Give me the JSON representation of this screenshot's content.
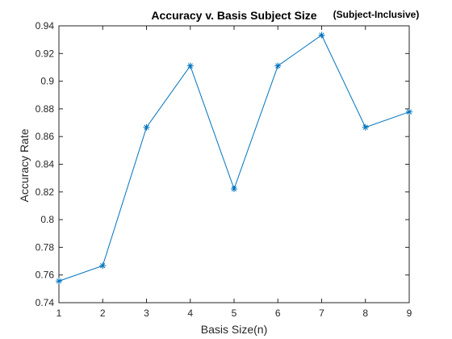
{
  "chart_data": {
    "type": "line",
    "title": "Accuracy v. Basis Subject Size",
    "subtitle": "(Subject-Inclusive)",
    "xlabel": "Basis Size(n)",
    "ylabel": "Accuracy Rate",
    "xlim": [
      1,
      9
    ],
    "ylim": [
      0.74,
      0.94
    ],
    "x_ticks": [
      1,
      2,
      3,
      4,
      5,
      6,
      7,
      8,
      9
    ],
    "y_ticks": [
      0.74,
      0.76,
      0.78,
      0.8,
      0.82,
      0.84,
      0.86,
      0.88,
      0.9,
      0.92,
      0.94
    ],
    "y_tick_labels": [
      "0.74",
      "0.76",
      "0.78",
      "0.8",
      "0.82",
      "0.84",
      "0.86",
      "0.88",
      "0.9",
      "0.92",
      "0.94"
    ],
    "grid": false,
    "marker": "asterisk",
    "series": [
      {
        "x": [
          1,
          2,
          3,
          4,
          5,
          6,
          7,
          8,
          9
        ],
        "values": [
          0.7556,
          0.7667,
          0.8667,
          0.9111,
          0.8222,
          0.9111,
          0.9333,
          0.8667,
          0.8778
        ],
        "color": "#0072BD"
      }
    ]
  }
}
